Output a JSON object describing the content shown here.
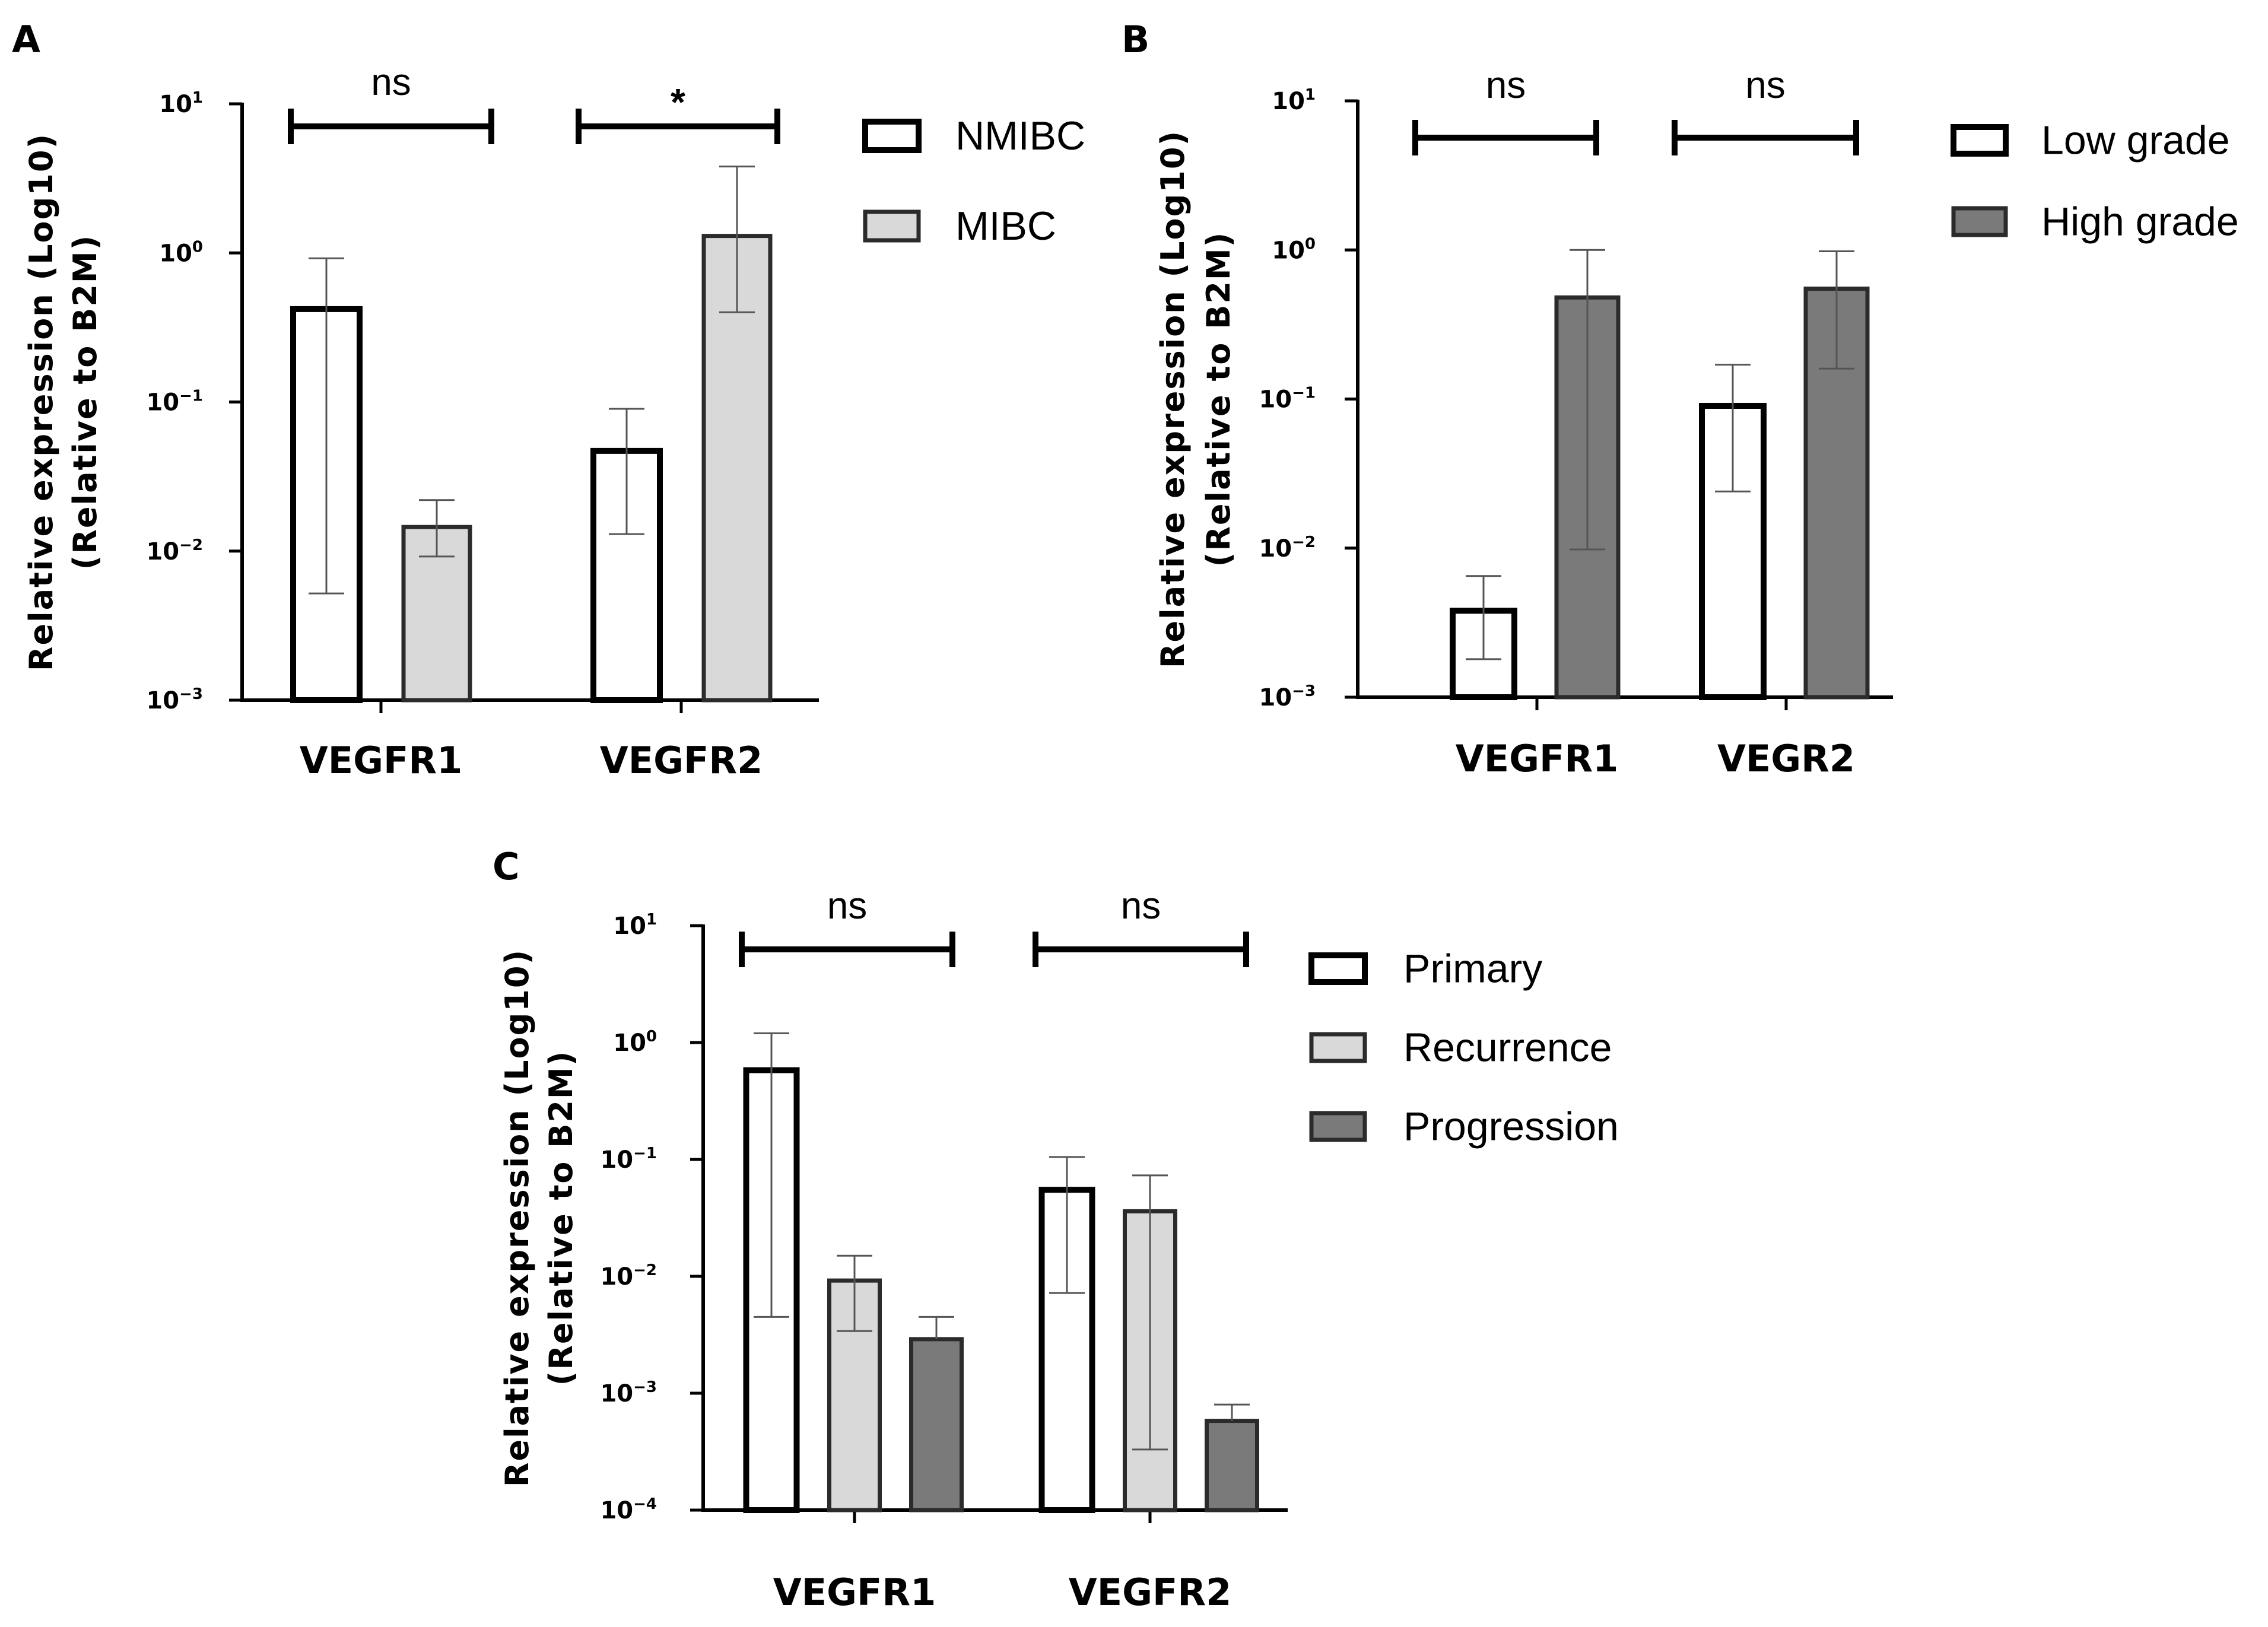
{
  "chart_data": [
    {
      "panel": "A",
      "type": "bar",
      "yscale": "log10",
      "ylabel_line1": "Relative expression (Log10)",
      "ylabel_line2": "(Relative to B2M)",
      "ylim": [
        0.001,
        10
      ],
      "y_ticks": [
        {
          "base": "10",
          "exp": "1"
        },
        {
          "base": "10",
          "exp": "0"
        },
        {
          "base": "10",
          "exp": "-1"
        },
        {
          "base": "10",
          "exp": "-2"
        },
        {
          "base": "10",
          "exp": "-3"
        }
      ],
      "categories": [
        "VEGFR1",
        "VEGFR2"
      ],
      "series": [
        {
          "name": "NMIBC",
          "color": "#ffffff",
          "values": [
            0.42,
            0.047
          ],
          "err_low": [
            0.0052,
            0.013
          ],
          "err_high": [
            0.92,
            0.09
          ]
        },
        {
          "name": "MIBC",
          "color": "#d9d9d9",
          "values": [
            0.0145,
            1.3
          ],
          "err_low": [
            0.0092,
            0.4
          ],
          "err_high": [
            0.022,
            3.8
          ]
        }
      ],
      "significance": [
        "ns",
        "*"
      ]
    },
    {
      "panel": "B",
      "type": "bar",
      "yscale": "log10",
      "ylabel_line1": "Relative expression (Log10)",
      "ylabel_line2": "(Relative to B2M)",
      "ylim": [
        0.001,
        10
      ],
      "y_ticks": [
        {
          "base": "10",
          "exp": "1"
        },
        {
          "base": "10",
          "exp": "0"
        },
        {
          "base": "10",
          "exp": "-1"
        },
        {
          "base": "10",
          "exp": "-2"
        },
        {
          "base": "10",
          "exp": "-3"
        }
      ],
      "categories": [
        "VEGFR1",
        "VEGR2"
      ],
      "series": [
        {
          "name": "Low grade",
          "color": "#ffffff",
          "values": [
            0.0038,
            0.09
          ],
          "err_low": [
            0.0018,
            0.024
          ],
          "err_high": [
            0.0065,
            0.17
          ]
        },
        {
          "name": "High grade",
          "color": "#7a7a7a",
          "values": [
            0.48,
            0.55
          ],
          "err_low": [
            0.0098,
            0.16
          ],
          "err_high": [
            1.0,
            0.98
          ]
        }
      ],
      "significance": [
        "ns",
        "ns"
      ]
    },
    {
      "panel": "C",
      "type": "bar",
      "yscale": "log10",
      "ylabel_line1": "Relative expression (Log10)",
      "ylabel_line2": "(Relative to B2M)",
      "ylim": [
        0.0001,
        10
      ],
      "y_ticks": [
        {
          "base": "10",
          "exp": "1"
        },
        {
          "base": "10",
          "exp": "0"
        },
        {
          "base": "10",
          "exp": "-1"
        },
        {
          "base": "10",
          "exp": "-2"
        },
        {
          "base": "10",
          "exp": "-3"
        },
        {
          "base": "10",
          "exp": "-4"
        }
      ],
      "categories": [
        "VEGFR1",
        "VEGFR2"
      ],
      "series": [
        {
          "name": "Primary",
          "color": "#ffffff",
          "values": [
            0.58,
            0.055
          ],
          "err_low": [
            0.0045,
            0.0072
          ],
          "err_high": [
            1.2,
            0.105
          ]
        },
        {
          "name": "Recurrence",
          "color": "#d9d9d9",
          "values": [
            0.0092,
            0.036
          ],
          "err_low": [
            0.0034,
            0.00033
          ],
          "err_high": [
            0.015,
            0.073
          ]
        },
        {
          "name": "Progression",
          "color": "#7a7a7a",
          "values": [
            0.0029,
            0.00058
          ],
          "err_low": [
            0.0029,
            0.00058
          ],
          "err_high": [
            0.0045,
            0.0008
          ]
        }
      ],
      "significance": [
        "ns",
        "ns"
      ]
    }
  ]
}
